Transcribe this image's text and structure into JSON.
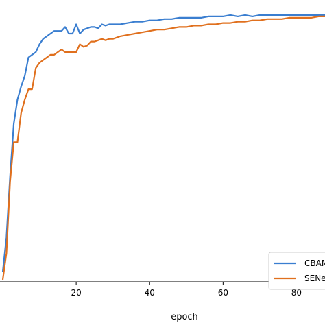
{
  "chart_data": {
    "type": "line",
    "xlabel": "epoch",
    "ylabel": "",
    "title": "",
    "xlim": [
      -1,
      90
    ],
    "ylim": [
      0,
      1
    ],
    "grid": false,
    "legend_position": "bottom-right",
    "xticks": [
      {
        "value": 20,
        "label": "20"
      },
      {
        "value": 40,
        "label": "40"
      },
      {
        "value": 60,
        "label": "60"
      },
      {
        "value": 80,
        "label": "80"
      }
    ],
    "series": [
      {
        "name": "CBAM",
        "color": "#3a7ed0",
        "x": [
          0,
          1,
          2,
          3,
          4,
          5,
          6,
          7,
          8,
          9,
          10,
          11,
          12,
          13,
          14,
          15,
          16,
          17,
          18,
          19,
          20,
          21,
          22,
          23,
          24,
          25,
          26,
          27,
          28,
          29,
          30,
          32,
          34,
          36,
          38,
          40,
          42,
          44,
          46,
          48,
          50,
          52,
          54,
          56,
          58,
          60,
          62,
          64,
          66,
          68,
          70,
          72,
          74,
          76,
          78,
          80,
          82,
          84,
          86,
          88,
          90
        ],
        "y": [
          0.03,
          0.16,
          0.39,
          0.59,
          0.68,
          0.73,
          0.77,
          0.84,
          0.85,
          0.86,
          0.89,
          0.91,
          0.92,
          0.93,
          0.94,
          0.94,
          0.94,
          0.955,
          0.93,
          0.93,
          0.965,
          0.93,
          0.945,
          0.95,
          0.955,
          0.955,
          0.95,
          0.965,
          0.96,
          0.965,
          0.965,
          0.965,
          0.97,
          0.975,
          0.975,
          0.98,
          0.98,
          0.985,
          0.985,
          0.99,
          0.99,
          0.99,
          0.99,
          0.995,
          0.995,
          0.995,
          1.0,
          0.995,
          1.0,
          0.995,
          1.0,
          1.0,
          1.0,
          1.0,
          1.0,
          1.0,
          1.0,
          1.0,
          1.0,
          1.0,
          1.0
        ]
      },
      {
        "name": "SENet",
        "color": "#e0701e",
        "x": [
          0,
          1,
          2,
          3,
          4,
          5,
          6,
          7,
          8,
          9,
          10,
          11,
          12,
          13,
          14,
          15,
          16,
          17,
          18,
          19,
          20,
          21,
          22,
          23,
          24,
          25,
          26,
          27,
          28,
          29,
          30,
          32,
          34,
          36,
          38,
          40,
          42,
          44,
          46,
          48,
          50,
          52,
          54,
          56,
          58,
          60,
          62,
          64,
          66,
          68,
          70,
          72,
          74,
          76,
          78,
          80,
          82,
          84,
          86,
          88,
          90
        ],
        "y": [
          0.0,
          0.1,
          0.37,
          0.52,
          0.52,
          0.63,
          0.68,
          0.72,
          0.72,
          0.8,
          0.82,
          0.83,
          0.84,
          0.85,
          0.85,
          0.86,
          0.87,
          0.86,
          0.86,
          0.86,
          0.86,
          0.89,
          0.88,
          0.885,
          0.9,
          0.9,
          0.905,
          0.91,
          0.905,
          0.91,
          0.91,
          0.92,
          0.925,
          0.93,
          0.935,
          0.94,
          0.945,
          0.945,
          0.95,
          0.955,
          0.955,
          0.96,
          0.96,
          0.965,
          0.965,
          0.97,
          0.97,
          0.975,
          0.975,
          0.98,
          0.98,
          0.985,
          0.985,
          0.985,
          0.99,
          0.99,
          0.99,
          0.99,
          0.995,
          0.995,
          0.995
        ]
      }
    ]
  }
}
